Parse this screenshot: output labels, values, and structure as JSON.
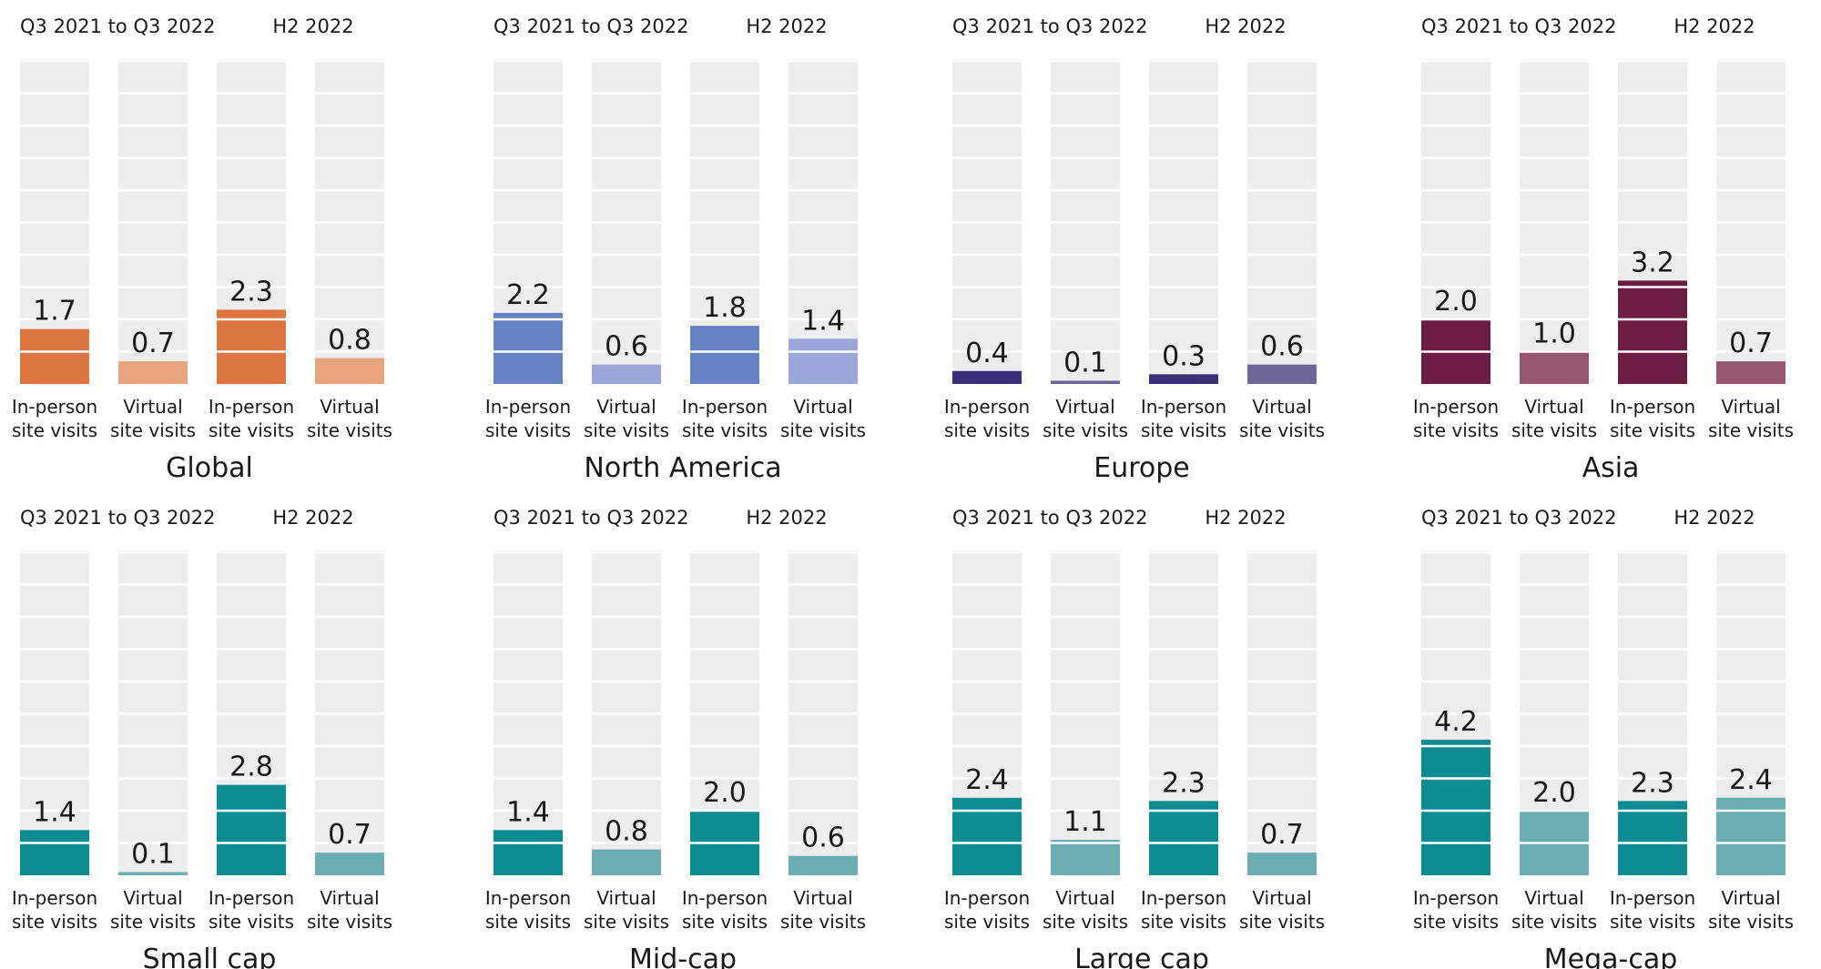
{
  "chart_data": [
    {
      "type": "bar",
      "title": "Global",
      "group_labels": [
        "Q3 2021 to Q3 2022",
        "H2 2022"
      ],
      "categories": [
        "In-person site visits",
        "Virtual site visits",
        "In-person site visits",
        "Virtual site visits"
      ],
      "values": [
        1.7,
        0.7,
        2.3,
        0.8
      ],
      "colors": [
        "#DC7540",
        "#E8A47C",
        "#DC7540",
        "#E8A47C"
      ],
      "ylim": [
        0,
        10
      ]
    },
    {
      "type": "bar",
      "title": "North America",
      "group_labels": [
        "Q3 2021 to Q3 2022",
        "H2 2022"
      ],
      "categories": [
        "In-person site visits",
        "Virtual site visits",
        "In-person site visits",
        "Virtual site visits"
      ],
      "values": [
        2.2,
        0.6,
        1.8,
        1.4
      ],
      "colors": [
        "#6683C3",
        "#9AA7D8",
        "#6683C3",
        "#9AA7D8"
      ],
      "ylim": [
        0,
        10
      ]
    },
    {
      "type": "bar",
      "title": "Europe",
      "group_labels": [
        "Q3 2021 to Q3 2022",
        "H2 2022"
      ],
      "categories": [
        "In-person site visits",
        "Virtual site visits",
        "In-person site visits",
        "Virtual site visits"
      ],
      "values": [
        0.4,
        0.1,
        0.3,
        0.6
      ],
      "colors": [
        "#3B2F7A",
        "#6E6699",
        "#3B2F7A",
        "#6E6699"
      ],
      "ylim": [
        0,
        10
      ]
    },
    {
      "type": "bar",
      "title": "Asia",
      "group_labels": [
        "Q3 2021 to Q3 2022",
        "H2 2022"
      ],
      "categories": [
        "In-person site visits",
        "Virtual site visits",
        "In-person site visits",
        "Virtual site visits"
      ],
      "values": [
        2.0,
        1.0,
        3.2,
        0.7
      ],
      "colors": [
        "#6D1C43",
        "#97566F",
        "#6D1C43",
        "#97566F"
      ],
      "ylim": [
        0,
        10
      ]
    },
    {
      "type": "bar",
      "title": "Small cap",
      "group_labels": [
        "Q3 2021 to Q3 2022",
        "H2 2022"
      ],
      "categories": [
        "In-person site visits",
        "Virtual site visits",
        "In-person site visits",
        "Virtual site visits"
      ],
      "values": [
        1.4,
        0.1,
        2.8,
        0.7
      ],
      "colors": [
        "#0D8C92",
        "#6AADB3",
        "#0D8C92",
        "#6AADB3"
      ],
      "ylim": [
        0,
        10
      ]
    },
    {
      "type": "bar",
      "title": "Mid-cap",
      "group_labels": [
        "Q3 2021 to Q3 2022",
        "H2 2022"
      ],
      "categories": [
        "In-person site visits",
        "Virtual site visits",
        "In-person site visits",
        "Virtual site visits"
      ],
      "values": [
        1.4,
        0.8,
        2.0,
        0.6
      ],
      "colors": [
        "#0D8C92",
        "#6AADB3",
        "#0D8C92",
        "#6AADB3"
      ],
      "ylim": [
        0,
        10
      ]
    },
    {
      "type": "bar",
      "title": "Large cap",
      "group_labels": [
        "Q3 2021 to Q3 2022",
        "H2 2022"
      ],
      "categories": [
        "In-person site visits",
        "Virtual site visits",
        "In-person site visits",
        "Virtual site visits"
      ],
      "values": [
        2.4,
        1.1,
        2.3,
        0.7
      ],
      "colors": [
        "#0D8C92",
        "#6AADB3",
        "#0D8C92",
        "#6AADB3"
      ],
      "ylim": [
        0,
        10
      ]
    },
    {
      "type": "bar",
      "title": "Mega-cap",
      "group_labels": [
        "Q3 2021 to Q3 2022",
        "H2 2022"
      ],
      "categories": [
        "In-person site visits",
        "Virtual site visits",
        "In-person site visits",
        "Virtual site visits"
      ],
      "values": [
        4.2,
        2.0,
        2.3,
        2.4
      ],
      "colors": [
        "#0D8C92",
        "#6AADB3",
        "#0D8C92",
        "#6AADB3"
      ],
      "ylim": [
        0,
        10
      ]
    }
  ]
}
